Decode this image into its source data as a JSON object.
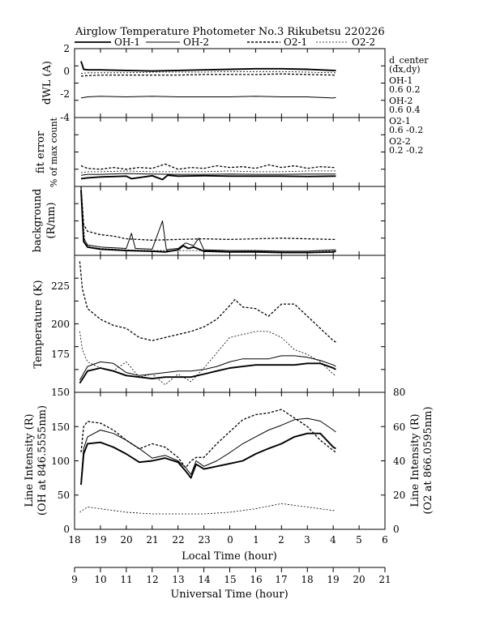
{
  "figure": {
    "title": "Airglow Temperature Photometer No.3  Rikubetsu    220226",
    "legend": [
      {
        "name": "OH-1",
        "style": "solid-thick"
      },
      {
        "name": "OH-2",
        "style": "solid-thin"
      },
      {
        "name": "O2-1",
        "style": "dashed-thick"
      },
      {
        "name": "O2-2",
        "style": "dashed-thin"
      }
    ],
    "side_notes": [
      "d_center",
      "(dx,dy)",
      "OH-1",
      "0.6  0.2",
      "OH-2",
      "0.6  0.4",
      "O2-1",
      "0.6  -0.2",
      "O2-2",
      "0.2  -0.2"
    ],
    "xlabel_local": "Local Time (hour)",
    "xlabel_ut": "Universal Time (hour)",
    "local_ticks": [
      "18",
      "19",
      "20",
      "21",
      "22",
      "23",
      "0",
      "1",
      "2",
      "3",
      "4",
      "5",
      "6"
    ],
    "ut_ticks": [
      "9",
      "10",
      "11",
      "12",
      "13",
      "14",
      "15",
      "16",
      "17",
      "18",
      "19",
      "20",
      "21"
    ]
  },
  "chart_data": [
    {
      "type": "line",
      "ylabel": "dWL (A)",
      "ylim": [
        -4,
        2
      ],
      "yticks": [
        "2",
        "0",
        "-2",
        "-4"
      ],
      "x_unit": "UT hour",
      "xlim": [
        9,
        21
      ],
      "series": [
        {
          "name": "OH-1",
          "x": [
            9.25,
            9.35,
            9.5,
            10,
            11,
            12,
            13,
            14,
            15,
            16,
            17,
            18,
            19,
            19.1
          ],
          "y": [
            0.9,
            0.2,
            0.15,
            0.15,
            0.1,
            0.05,
            0.1,
            0.15,
            0.2,
            0.25,
            0.25,
            0.2,
            0.1,
            0.1
          ]
        },
        {
          "name": "OH-2",
          "x": [
            9.25,
            9.5,
            10,
            11,
            12,
            13,
            14,
            15,
            16,
            17,
            18,
            19,
            19.1
          ],
          "y": [
            -2.3,
            -2.2,
            -2.15,
            -2.2,
            -2.15,
            -2.2,
            -2.2,
            -2.2,
            -2.15,
            -2.2,
            -2.2,
            -2.3,
            -2.25
          ]
        },
        {
          "name": "O2-1",
          "x": [
            9.25,
            9.5,
            10,
            11,
            12,
            13,
            14,
            15,
            16,
            17,
            18,
            19,
            19.1
          ],
          "y": [
            -0.4,
            -0.35,
            -0.3,
            -0.3,
            -0.3,
            -0.3,
            -0.25,
            -0.25,
            -0.25,
            -0.2,
            -0.25,
            -0.3,
            -0.3
          ]
        },
        {
          "name": "O2-2",
          "x": [
            9.25,
            9.5,
            10,
            11,
            12,
            13,
            14,
            15,
            16,
            17,
            18,
            19,
            19.1
          ],
          "y": [
            -0.15,
            -0.1,
            -0.1,
            -0.1,
            -0.05,
            -0.05,
            -0.05,
            0,
            0,
            0,
            -0.05,
            -0.1,
            -0.1
          ]
        }
      ]
    },
    {
      "type": "line",
      "ylabel": "fit error",
      "ylabel2": "% of max count",
      "ylim": [
        0,
        4
      ],
      "x_unit": "UT hour",
      "xlim": [
        9,
        21
      ],
      "series": [
        {
          "name": "OH-1",
          "x": [
            9.25,
            9.5,
            10,
            11,
            11.2,
            12,
            12.4,
            12.6,
            13,
            14,
            15,
            16,
            17,
            18,
            19,
            19.1
          ],
          "y": [
            0.45,
            0.5,
            0.55,
            0.6,
            0.45,
            0.62,
            0.4,
            0.65,
            0.6,
            0.62,
            0.6,
            0.6,
            0.6,
            0.58,
            0.6,
            0.6
          ]
        },
        {
          "name": "OH-2",
          "x": [
            9.25,
            9.5,
            10,
            11,
            12,
            13,
            14,
            15,
            16,
            17,
            18,
            19,
            19.1
          ],
          "y": [
            0.65,
            0.7,
            0.7,
            0.75,
            0.72,
            0.7,
            0.7,
            0.72,
            0.7,
            0.7,
            0.72,
            0.72,
            0.72
          ]
        },
        {
          "name": "O2-1",
          "x": [
            9.25,
            9.5,
            10,
            10.5,
            11,
            11.5,
            12,
            12.5,
            13,
            13.5,
            14,
            14.5,
            15,
            15.5,
            16,
            16.5,
            17,
            17.5,
            18,
            18.5,
            19,
            19.1
          ],
          "y": [
            1.2,
            1.05,
            1.0,
            1.1,
            1.0,
            1.1,
            1.05,
            1.3,
            1.0,
            1.1,
            1.05,
            1.2,
            1.1,
            1.15,
            1.05,
            1.25,
            1.1,
            1.2,
            1.05,
            1.15,
            1.1,
            1.1
          ]
        },
        {
          "name": "O2-2",
          "x": [
            9.25,
            9.5,
            10,
            11,
            12,
            13,
            14,
            15,
            16,
            17,
            18,
            19,
            19.1
          ],
          "y": [
            0.8,
            0.85,
            0.85,
            0.9,
            0.85,
            0.85,
            0.85,
            0.9,
            0.85,
            0.85,
            0.9,
            0.9,
            0.9
          ]
        }
      ]
    },
    {
      "type": "line",
      "ylabel": "background",
      "ylabel2": "(R/nm)",
      "ylim": [
        0,
        100
      ],
      "x_unit": "UT hour",
      "xlim": [
        9,
        21
      ],
      "series": [
        {
          "name": "OH-1",
          "x": [
            9.25,
            9.35,
            9.5,
            10,
            11,
            12,
            12.5,
            13,
            13.2,
            13.4,
            13.6,
            14,
            15,
            16,
            17,
            18,
            19,
            19.1
          ],
          "y": [
            95,
            20,
            12,
            9,
            7,
            6,
            5,
            8,
            14,
            10,
            12,
            6,
            5,
            5,
            4,
            4,
            5,
            6
          ]
        },
        {
          "name": "OH-2",
          "x": [
            9.25,
            9.35,
            9.5,
            10,
            11,
            11.2,
            11.35,
            12,
            12.4,
            12.55,
            12.7,
            13,
            13.3,
            13.6,
            13.8,
            14,
            15,
            16,
            17,
            18,
            19,
            19.1
          ],
          "y": [
            98,
            25,
            15,
            12,
            10,
            32,
            10,
            9,
            50,
            8,
            9,
            10,
            18,
            14,
            25,
            8,
            7,
            7,
            6,
            6,
            8,
            8
          ]
        },
        {
          "name": "O2-1",
          "x": [
            9.25,
            9.35,
            9.5,
            10,
            10.5,
            11,
            12,
            13,
            14,
            15,
            16,
            17,
            18,
            19,
            19.1
          ],
          "y": [
            100,
            45,
            35,
            30,
            28,
            24,
            22,
            23,
            24,
            23,
            24,
            25,
            24,
            23,
            23
          ]
        },
        {
          "name": "O2-2",
          "x": [
            9.25,
            9.4,
            9.6,
            10,
            11,
            12,
            13,
            14,
            15,
            16,
            17,
            18,
            19,
            19.1
          ],
          "y": [
            90,
            18,
            12,
            10,
            8,
            7,
            7,
            7,
            7,
            6,
            6,
            6,
            7,
            7
          ]
        }
      ]
    },
    {
      "type": "line",
      "ylabel": "Temperature (K)",
      "ylim": [
        150,
        240
      ],
      "yticks": [
        "150",
        "175",
        "200",
        "225"
      ],
      "x_unit": "UT hour",
      "xlim": [
        9,
        21
      ],
      "series": [
        {
          "name": "OH-1",
          "x": [
            9.2,
            9.5,
            10,
            10.5,
            11,
            11.5,
            12,
            12.5,
            13,
            13.5,
            14,
            14.5,
            15,
            15.5,
            16,
            16.5,
            17,
            17.5,
            18,
            18.5,
            19,
            19.1
          ],
          "y": [
            156,
            164,
            166,
            164,
            161,
            160,
            159,
            160,
            160,
            160,
            162,
            164,
            166,
            167,
            168,
            168,
            168,
            168,
            169,
            169,
            166,
            165
          ]
        },
        {
          "name": "OH-2",
          "x": [
            9.2,
            9.5,
            10,
            10.5,
            11,
            11.5,
            12,
            12.5,
            13,
            13.5,
            14,
            14.5,
            15,
            15.5,
            16,
            16.5,
            17,
            17.5,
            18,
            18.5,
            19,
            19.1
          ],
          "y": [
            158,
            167,
            170,
            169,
            163,
            161,
            162,
            163,
            164,
            164,
            165,
            167,
            170,
            172,
            172,
            172,
            174,
            174,
            173,
            171,
            168,
            167
          ]
        },
        {
          "name": "O2-1",
          "x": [
            9.2,
            9.3,
            9.5,
            10,
            10.5,
            11,
            11.5,
            12,
            12.5,
            13,
            13.5,
            14,
            14.5,
            15,
            15.2,
            15.5,
            16,
            16.5,
            17,
            17.5,
            18,
            18.5,
            19,
            19.1
          ],
          "y": [
            236,
            218,
            205,
            198,
            194,
            192,
            186,
            184,
            186,
            188,
            190,
            193,
            198,
            207,
            211,
            206,
            205,
            200,
            208,
            208,
            200,
            192,
            184,
            183
          ]
        },
        {
          "name": "O2-2",
          "x": [
            9.2,
            9.3,
            9.5,
            10,
            10.5,
            11,
            11.5,
            12,
            12.5,
            13,
            13.5,
            14,
            14.5,
            15,
            15.5,
            16,
            16.5,
            17,
            17.5,
            18,
            18.5,
            19,
            19.1
          ],
          "y": [
            190,
            178,
            170,
            166,
            164,
            170,
            160,
            162,
            155,
            162,
            157,
            166,
            176,
            186,
            188,
            190,
            190,
            186,
            178,
            175,
            170,
            162,
            161
          ]
        }
      ]
    },
    {
      "type": "line",
      "ylabel": "Line Intensity (R)",
      "ylabel2": "(OH at 846.5555nm)",
      "ylabel_right": "Line Intensity (R)",
      "ylabel_right2": "(O2 at 866.0595nm)",
      "ylim": [
        0,
        200
      ],
      "yticks": [
        "0",
        "50",
        "100",
        "150"
      ],
      "ylim_right": [
        0,
        80
      ],
      "yticks_right": [
        "0",
        "20",
        "40",
        "60",
        "80"
      ],
      "x_unit": "UT hour",
      "xlim": [
        9,
        21
      ],
      "series": [
        {
          "name": "OH-1",
          "axis": "left",
          "x": [
            9.25,
            9.35,
            9.5,
            10,
            10.5,
            11,
            11.5,
            12,
            12.5,
            13,
            13.3,
            13.5,
            13.7,
            14,
            14.5,
            15,
            15.5,
            16,
            16.5,
            17,
            17.5,
            18,
            18.5,
            19,
            19.1
          ],
          "y": [
            65,
            110,
            125,
            127,
            120,
            110,
            98,
            100,
            104,
            98,
            85,
            75,
            95,
            88,
            92,
            96,
            100,
            110,
            118,
            125,
            135,
            140,
            140,
            120,
            118
          ]
        },
        {
          "name": "OH-2",
          "axis": "left",
          "x": [
            9.25,
            9.35,
            9.5,
            10,
            10.5,
            11,
            11.5,
            12,
            12.5,
            13,
            13.3,
            13.5,
            13.7,
            14,
            14.5,
            15,
            15.5,
            16,
            16.5,
            17,
            17.5,
            18,
            18.5,
            19,
            19.1
          ],
          "y": [
            70,
            118,
            135,
            145,
            140,
            130,
            118,
            104,
            108,
            100,
            90,
            80,
            100,
            92,
            100,
            112,
            125,
            135,
            145,
            152,
            160,
            162,
            158,
            145,
            142
          ]
        },
        {
          "name": "O2-1",
          "axis": "right",
          "x": [
            9.25,
            9.35,
            9.5,
            10,
            10.5,
            11,
            11.5,
            12,
            12.5,
            13,
            13.3,
            13.5,
            13.7,
            14,
            14.5,
            15,
            15.5,
            16,
            16.5,
            17,
            17.5,
            18,
            18.5,
            19,
            19.1
          ],
          "y": [
            45,
            60,
            63,
            62,
            58,
            52,
            47,
            50,
            48,
            42,
            36,
            40,
            42,
            42,
            50,
            57,
            64,
            67,
            68,
            70,
            65,
            60,
            52,
            46,
            45
          ]
        },
        {
          "name": "O2-2",
          "axis": "right",
          "x": [
            9.2,
            9.5,
            10,
            11,
            12,
            13,
            14,
            15,
            16,
            17,
            18,
            19,
            19.1
          ],
          "y": [
            10,
            13,
            12,
            10,
            9,
            9,
            9,
            10,
            12,
            15,
            13,
            11,
            11
          ]
        }
      ]
    }
  ]
}
